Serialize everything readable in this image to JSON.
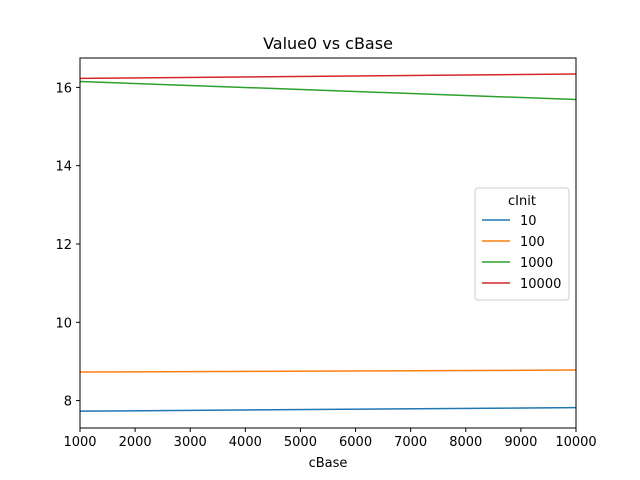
{
  "chart_data": {
    "type": "line",
    "title": "Value0 vs cBase",
    "xlabel": "cBase",
    "ylabel": "",
    "x": [
      1000,
      10000
    ],
    "xlim": [
      1000,
      10000
    ],
    "ylim": [
      7.3,
      16.75
    ],
    "xticks": [
      1000,
      2000,
      3000,
      4000,
      5000,
      6000,
      7000,
      8000,
      9000,
      10000
    ],
    "yticks": [
      8,
      10,
      12,
      14,
      16
    ],
    "grid": false,
    "legend": {
      "title": "cInit",
      "placement": "center-right"
    },
    "series": [
      {
        "name": "10",
        "color": "#1f77b4",
        "values": [
          7.73,
          7.82
        ]
      },
      {
        "name": "100",
        "color": "#ff7f0e",
        "values": [
          8.73,
          8.78
        ]
      },
      {
        "name": "1000",
        "color": "#2ca02c",
        "values": [
          16.15,
          15.69
        ]
      },
      {
        "name": "10000",
        "color": "#d62728",
        "values": [
          16.23,
          16.34
        ]
      }
    ]
  }
}
